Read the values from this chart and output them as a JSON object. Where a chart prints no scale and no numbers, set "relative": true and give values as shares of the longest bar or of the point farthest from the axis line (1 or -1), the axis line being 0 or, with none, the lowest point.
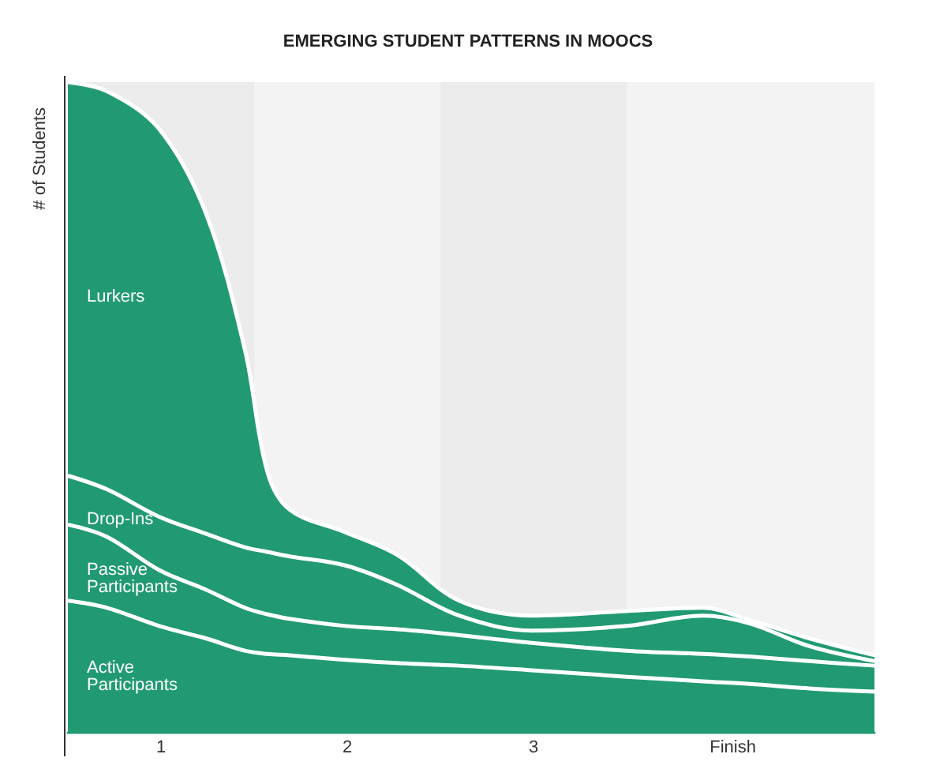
{
  "chart_data": {
    "type": "area",
    "title": "EMERGING STUDENT PATTERNS IN MOOCS",
    "ylabel": "# of Students",
    "relative": true,
    "stacked": true,
    "x": [
      0,
      0.21,
      0.49,
      0.74,
      0.95,
      1.07,
      1.19,
      1.49,
      1.77,
      2.1,
      2.49,
      3.0,
      3.41,
      3.66,
      3.98,
      4.33
    ],
    "xlim": [
      0,
      4.33
    ],
    "xticks": [
      {
        "value": 0.5,
        "label": "1"
      },
      {
        "value": 1.5,
        "label": "2"
      },
      {
        "value": 2.5,
        "label": "3"
      },
      {
        "value": 3.57,
        "label": "Finish"
      }
    ],
    "bands": [
      {
        "axis": "x",
        "from": 0,
        "to": 1,
        "color": "#ececec"
      },
      {
        "axis": "x",
        "from": 1,
        "to": 2,
        "color": "#f3f3f3"
      },
      {
        "axis": "x",
        "from": 2,
        "to": 3,
        "color": "#ececec"
      },
      {
        "axis": "x",
        "from": 3,
        "to": 4.33,
        "color": "#f3f3f3"
      }
    ],
    "series": [
      {
        "name": "Active Participants",
        "color": "#219a73",
        "values": [
          0.203,
          0.192,
          0.164,
          0.145,
          0.126,
          0.121,
          0.119,
          0.112,
          0.107,
          0.103,
          0.096,
          0.086,
          0.079,
          0.075,
          0.068,
          0.063
        ]
      },
      {
        "name": "Passive Participants",
        "color": "#219a73",
        "values": [
          0.117,
          0.109,
          0.086,
          0.075,
          0.066,
          0.061,
          0.056,
          0.052,
          0.052,
          0.047,
          0.042,
          0.04,
          0.042,
          0.042,
          0.042,
          0.04
        ]
      },
      {
        "name": "Drop-Ins",
        "color": "#219a73",
        "values": [
          0.075,
          0.073,
          0.082,
          0.086,
          0.093,
          0.096,
          0.096,
          0.093,
          0.068,
          0.03,
          0.019,
          0.038,
          0.059,
          0.051,
          0.023,
          0.007
        ]
      },
      {
        "name": "Lurkers",
        "color": "#219a73",
        "values": [
          0.605,
          0.612,
          0.596,
          0.493,
          0.304,
          0.124,
          0.072,
          0.051,
          0.046,
          0.023,
          0.023,
          0.023,
          0.012,
          0.005,
          0.012,
          0.009
        ]
      }
    ]
  }
}
